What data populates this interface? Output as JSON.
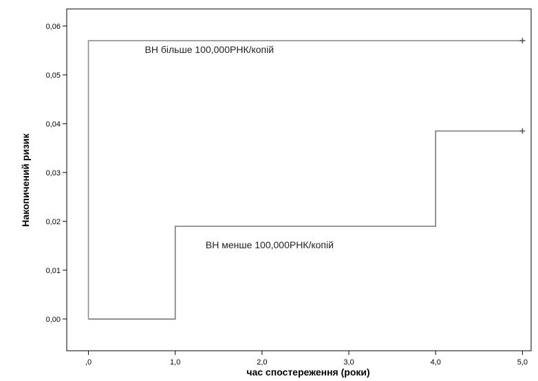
{
  "chart_data": {
    "type": "line",
    "title": "",
    "xlabel": "час спостереження (роки)",
    "ylabel": "Накопичений ризик",
    "xlim": [
      -0.25,
      5.1
    ],
    "ylim": [
      -0.0065,
      0.0635
    ],
    "x_ticks": [
      0,
      1,
      2,
      3,
      4,
      5
    ],
    "x_tick_labels": [
      ",0",
      "1,0",
      "2,0",
      "3,0",
      "4,0",
      "5,0"
    ],
    "y_ticks": [
      0.0,
      0.01,
      0.02,
      0.03,
      0.04,
      0.05,
      0.06
    ],
    "y_tick_labels": [
      "0,00",
      "0,01",
      "0,02",
      "0,03",
      "0,04",
      "0,05",
      "0,06"
    ],
    "grid": false,
    "legend": "none",
    "series": [
      {
        "name": "ВН більше 100,000РНК/копій",
        "step": true,
        "color": "#8c8c8c",
        "x": [
          0,
          0,
          5
        ],
        "y": [
          0,
          0.057,
          0.057
        ],
        "censored": [
          {
            "x": 5,
            "y": 0.057
          }
        ]
      },
      {
        "name": "ВН менше 100,000РНК/копій",
        "step": true,
        "color": "#777777",
        "x": [
          0,
          1,
          1,
          4,
          4,
          5
        ],
        "y": [
          0,
          0,
          0.019,
          0.019,
          0.0385,
          0.0385
        ],
        "censored": [
          {
            "x": 5,
            "y": 0.0385
          }
        ]
      }
    ],
    "annotations": [
      {
        "text": "ВН більше 100,000РНК/копій",
        "x": 0.65,
        "y": 0.0545
      },
      {
        "text": "ВН менше 100,000РНК/копій",
        "x": 1.35,
        "y": 0.0145
      }
    ]
  }
}
